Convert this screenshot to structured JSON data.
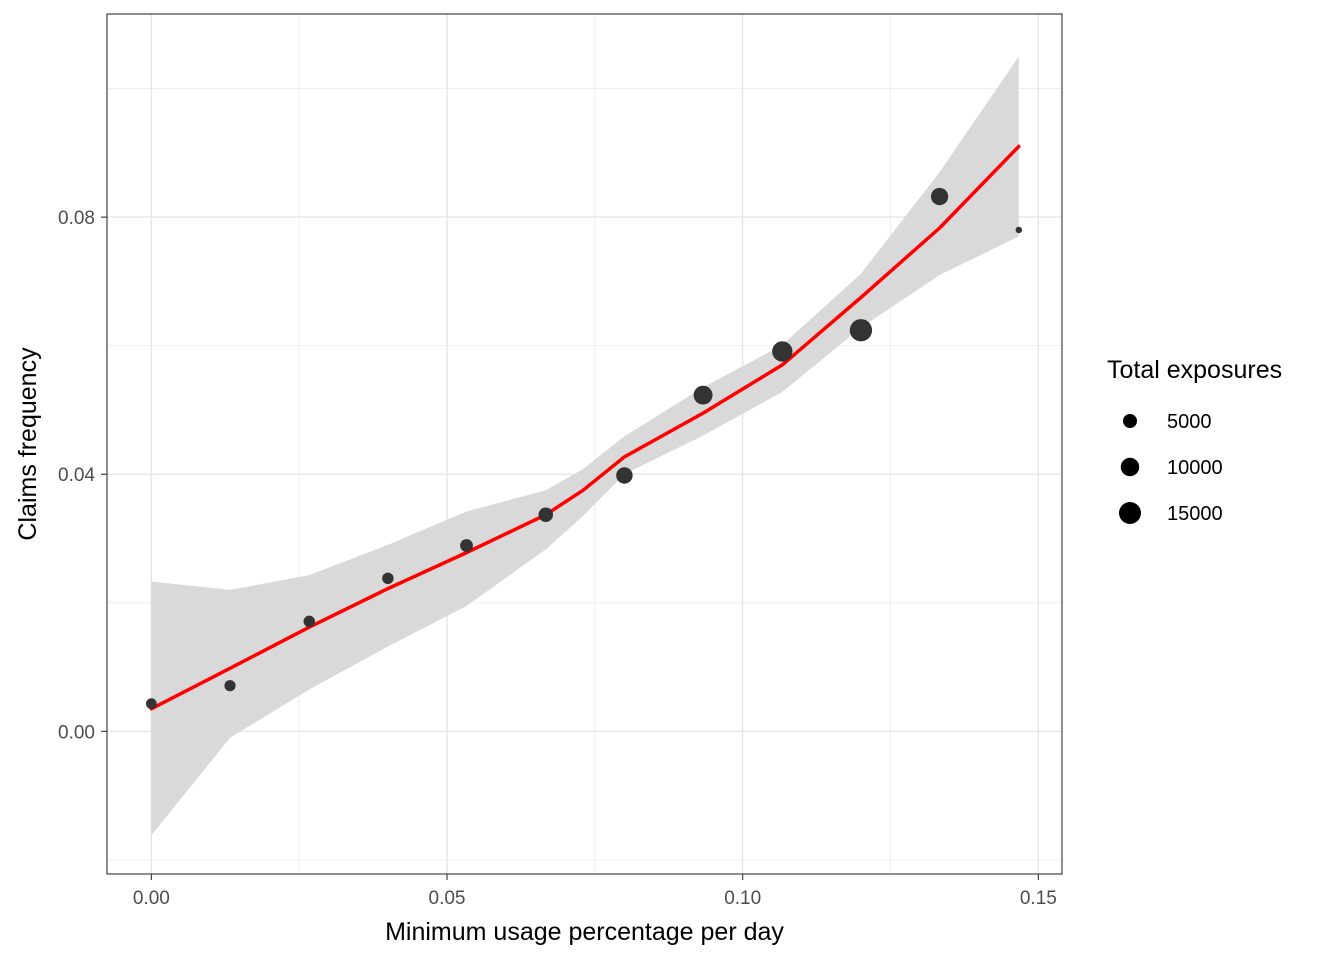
{
  "chart_data": {
    "type": "scatter",
    "xlabel": "Minimum usage percentage per day",
    "ylabel": "Claims frequency",
    "xlim": [
      -0.0075,
      0.154
    ],
    "ylim": [
      -0.0222,
      0.1116
    ],
    "x_ticks": [
      0.0,
      0.05,
      0.1,
      0.15
    ],
    "x_tick_labels": [
      "0.00",
      "0.05",
      "0.10",
      "0.15"
    ],
    "y_ticks": [
      0.0,
      0.04,
      0.08
    ],
    "y_tick_labels": [
      "0.00",
      "0.04",
      "0.08"
    ],
    "grid": true,
    "points": [
      {
        "x": 0.0,
        "y": 0.0043,
        "exposure": 2500
      },
      {
        "x": 0.0133,
        "y": 0.0071,
        "exposure": 2800
      },
      {
        "x": 0.0267,
        "y": 0.0171,
        "exposure": 3000
      },
      {
        "x": 0.04,
        "y": 0.0238,
        "exposure": 3000
      },
      {
        "x": 0.0533,
        "y": 0.0289,
        "exposure": 4000
      },
      {
        "x": 0.0667,
        "y": 0.0337,
        "exposure": 5500
      },
      {
        "x": 0.08,
        "y": 0.0398,
        "exposure": 7500
      },
      {
        "x": 0.0933,
        "y": 0.0523,
        "exposure": 10500
      },
      {
        "x": 0.1067,
        "y": 0.0591,
        "exposure": 12500
      },
      {
        "x": 0.12,
        "y": 0.0624,
        "exposure": 15500
      },
      {
        "x": 0.1333,
        "y": 0.0832,
        "exposure": 8500
      },
      {
        "x": 0.1467,
        "y": 0.078,
        "exposure": 500
      }
    ],
    "smooth_line": {
      "color": "#ff0000",
      "x": [
        0.0,
        0.0133,
        0.0267,
        0.04,
        0.0533,
        0.0667,
        0.073,
        0.08,
        0.0933,
        0.1067,
        0.12,
        0.1333,
        0.1467
      ],
      "y": [
        0.0035,
        0.0098,
        0.0162,
        0.0222,
        0.0278,
        0.0337,
        0.0375,
        0.0427,
        0.0495,
        0.057,
        0.0675,
        0.0783,
        0.091
      ]
    },
    "confidence_band": {
      "color": "#d9d9d9",
      "x": [
        0.0,
        0.0133,
        0.0267,
        0.04,
        0.0533,
        0.0667,
        0.073,
        0.08,
        0.0933,
        0.1067,
        0.12,
        0.1333,
        0.1467
      ],
      "lower": [
        -0.0162,
        -0.001,
        0.0065,
        0.0132,
        0.0195,
        0.0283,
        0.0335,
        0.04,
        0.046,
        0.0528,
        0.0628,
        0.071,
        0.077
      ],
      "upper": [
        0.0233,
        0.022,
        0.0243,
        0.029,
        0.0342,
        0.0375,
        0.0408,
        0.0459,
        0.0535,
        0.0601,
        0.0712,
        0.087,
        0.105
      ]
    },
    "point_color": "#333333",
    "legend": {
      "title": "Total exposures",
      "position": "right",
      "entries": [
        {
          "label": "5000",
          "value": 5000
        },
        {
          "label": "10000",
          "value": 10000
        },
        {
          "label": "15000",
          "value": 15000
        }
      ]
    }
  }
}
